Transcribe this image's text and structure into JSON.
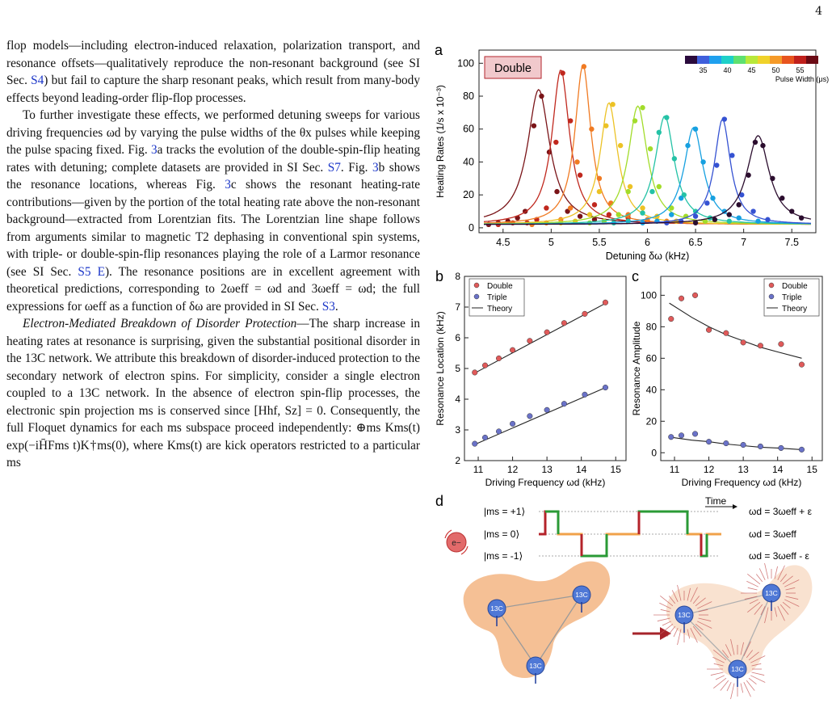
{
  "page_number": "4",
  "text": {
    "p1": [
      {
        "t": "flop models—including electron-induced relaxation, polarization transport, and resonance offsets—qualitatively reproduce the non-resonant background (see SI Sec. "
      },
      {
        "t": "S4",
        "link": true
      },
      {
        "t": ") but fail to capture the sharp resonant peaks, which result from many-body effects beyond leading-order flip-flop processes."
      }
    ],
    "p2": [
      {
        "t": "To further investigate these effects, we performed detuning sweeps for various driving frequencies ωd by varying the pulse widths of the θx pulses while keeping the pulse spacing fixed. Fig. "
      },
      {
        "t": "3",
        "link": true
      },
      {
        "t": "a tracks the evolution of the double-spin-flip heating rates with detuning; complete datasets are provided in SI Sec. "
      },
      {
        "t": "S7",
        "link": true
      },
      {
        "t": ". Fig. "
      },
      {
        "t": "3",
        "link": true
      },
      {
        "t": "b shows the resonance locations, whereas Fig. "
      },
      {
        "t": "3",
        "link": true
      },
      {
        "t": "c shows the resonant heating-rate contributions—given by the portion of the total heating rate above the non-resonant background—extracted from Lorentzian fits. The Lorentzian line shape follows from arguments similar to magnetic T2 dephasing in conventional spin systems, with triple- or double-spin-flip resonances playing the role of a Larmor resonance (see SI Sec. "
      },
      {
        "t": "S5 E",
        "link": true
      },
      {
        "t": "). The resonance positions are in excellent agreement with theoretical predictions, corresponding to 2ωeff = ωd and 3ωeff = ωd; the full expressions for ωeff as a function of δω are provided in SI Sec. "
      },
      {
        "t": "S3",
        "link": true
      },
      {
        "t": "."
      }
    ],
    "p3": [
      {
        "t": "Electron-Mediated Breakdown of Disorder Protection",
        "italic": true
      },
      {
        "t": "—The sharp increase in heating rates at resonance is surprising, given the substantial positional disorder in the 13C network. We attribute this breakdown of disorder-induced protection to the secondary network of electron spins. For simplicity, consider a single electron coupled to a 13C network. In the absence of electron spin-flip processes, the electronic spin projection ms is conserved since [Hhf, Sz] = 0. Consequently, the full Floquet dynamics for each ms subspace proceed independently: ⊕ms Kms(t) exp(−iH̄Fms t)K†ms(0), where Kms(t) are kick operators restricted to a particular ms"
      }
    ]
  },
  "figure": {
    "panel_a": {
      "label": "a"
    },
    "panel_b": {
      "label": "b"
    },
    "panel_c": {
      "label": "c"
    },
    "panel_d": {
      "label": "d",
      "time_label": "Time",
      "levels": [
        "|ms = +1⟩",
        "|ms = 0⟩",
        "|ms = -1⟩"
      ],
      "right_labels": [
        "ωd = 3ωeff + ε",
        "ωd = 3ωeff",
        "ωd = 3ωeff - ε"
      ],
      "electron_label": "e−",
      "nucleus_label": "13C"
    }
  },
  "chart_data": [
    {
      "type": "line",
      "panel": "a",
      "xlabel": "Detuning δω (kHz)",
      "ylabel": "Heating Rates (1/s x 10⁻³)",
      "xlim": [
        4.25,
        7.75
      ],
      "ylim": [
        -3,
        108
      ],
      "xticks": [
        4.5,
        5,
        5.5,
        6,
        6.5,
        7,
        7.5
      ],
      "yticks": [
        0,
        20,
        40,
        60,
        80,
        100
      ],
      "badge": "Double",
      "colorbar": {
        "title": "Pulse Width (μs)",
        "tick_labels": [
          "35",
          "40",
          "45",
          "50",
          "55"
        ],
        "colors": [
          "#2a0a3c",
          "#3f5fdc",
          "#1fa0ee",
          "#1ed0c8",
          "#5ee070",
          "#b8e83a",
          "#f0d22a",
          "#f59a28",
          "#e8541e",
          "#c0201c",
          "#6a0a14"
        ]
      },
      "series": [
        {
          "name": "",
          "color": "#7a1418",
          "center": 4.87,
          "peak": 84,
          "gamma": 0.14,
          "x": [
            4.35,
            4.45,
            4.55,
            4.65,
            4.73,
            4.82,
            4.9,
            4.98,
            5.06,
            5.17,
            5.3,
            5.45
          ],
          "y": [
            2,
            3,
            4,
            6,
            10,
            62,
            80,
            46,
            22,
            10,
            7,
            5
          ]
        },
        {
          "name": "",
          "color": "#c0281e",
          "center": 5.1,
          "peak": 96,
          "gamma": 0.11,
          "x": [
            4.45,
            4.6,
            4.75,
            4.85,
            4.95,
            5.05,
            5.12,
            5.2,
            5.3,
            5.45,
            5.6,
            5.8,
            6.0
          ],
          "y": [
            2,
            3,
            3,
            5,
            12,
            52,
            94,
            65,
            32,
            14,
            8,
            6,
            4
          ]
        },
        {
          "name": "",
          "color": "#f07a22",
          "center": 5.33,
          "peak": 99,
          "gamma": 0.1,
          "x": [
            4.8,
            4.95,
            5.1,
            5.2,
            5.27,
            5.34,
            5.42,
            5.5,
            5.62,
            5.8,
            6.0,
            6.2
          ],
          "y": [
            2,
            3,
            5,
            12,
            40,
            98,
            60,
            30,
            15,
            8,
            5,
            4
          ]
        },
        {
          "name": "",
          "color": "#ecc225",
          "center": 5.6,
          "peak": 76,
          "gamma": 0.11,
          "x": [
            5.1,
            5.25,
            5.4,
            5.5,
            5.57,
            5.64,
            5.72,
            5.82,
            5.95,
            6.1,
            6.3
          ],
          "y": [
            3,
            4,
            8,
            22,
            62,
            75,
            50,
            25,
            12,
            7,
            4
          ]
        },
        {
          "name": "",
          "color": "#a2dc2a",
          "center": 5.9,
          "peak": 74,
          "gamma": 0.12,
          "x": [
            5.4,
            5.55,
            5.7,
            5.8,
            5.87,
            5.95,
            6.03,
            6.12,
            6.25,
            6.4,
            6.6
          ],
          "y": [
            3,
            4,
            8,
            22,
            65,
            73,
            48,
            25,
            12,
            7,
            4
          ]
        },
        {
          "name": "",
          "color": "#24c2a6",
          "center": 6.18,
          "peak": 68,
          "gamma": 0.12,
          "x": [
            5.65,
            5.8,
            5.95,
            6.05,
            6.12,
            6.2,
            6.28,
            6.38,
            6.5,
            6.65,
            6.85
          ],
          "y": [
            3,
            4,
            9,
            22,
            58,
            67,
            42,
            20,
            10,
            6,
            4
          ]
        },
        {
          "name": "",
          "color": "#16a0e0",
          "center": 6.48,
          "peak": 61,
          "gamma": 0.12,
          "x": [
            5.95,
            6.1,
            6.25,
            6.35,
            6.42,
            6.5,
            6.58,
            6.68,
            6.8,
            6.95,
            7.15
          ],
          "y": [
            3,
            4,
            8,
            18,
            50,
            60,
            40,
            18,
            10,
            6,
            4
          ]
        },
        {
          "name": "",
          "color": "#3552d2",
          "center": 6.78,
          "peak": 66,
          "gamma": 0.1,
          "x": [
            6.2,
            6.35,
            6.5,
            6.62,
            6.72,
            6.8,
            6.88,
            6.98,
            7.1,
            7.25
          ],
          "y": [
            3,
            4,
            7,
            15,
            38,
            66,
            44,
            20,
            10,
            5
          ]
        },
        {
          "name": "",
          "color": "#2b0d2e",
          "center": 7.15,
          "peak": 56,
          "gamma": 0.14,
          "x": [
            6.5,
            6.7,
            6.85,
            6.95,
            7.05,
            7.12,
            7.2,
            7.3,
            7.4,
            7.5,
            7.6
          ],
          "y": [
            3,
            5,
            8,
            14,
            32,
            52,
            50,
            30,
            18,
            10,
            6
          ]
        }
      ]
    },
    {
      "type": "scatter",
      "panel": "b",
      "xlabel": "Driving Frequency ωd (kHz)",
      "ylabel": "Resonance Location (kHz)",
      "xlim": [
        10.6,
        15.3
      ],
      "ylim": [
        2,
        8
      ],
      "xticks": [
        11,
        12,
        13,
        14,
        15
      ],
      "yticks": [
        2,
        3,
        4,
        5,
        6,
        7,
        8
      ],
      "legend": {
        "placement": "top-left",
        "entries": [
          "Double",
          "Triple",
          "Theory"
        ]
      },
      "series": [
        {
          "name": "Double",
          "color": "#e05a5a",
          "x": [
            10.9,
            11.2,
            11.6,
            12.0,
            12.5,
            13.0,
            13.5,
            14.1,
            14.7
          ],
          "y": [
            4.87,
            5.1,
            5.33,
            5.6,
            5.9,
            6.18,
            6.48,
            6.78,
            7.15
          ]
        },
        {
          "name": "Triple",
          "color": "#6a72c8",
          "x": [
            10.9,
            11.2,
            11.6,
            12.0,
            12.5,
            13.0,
            13.5,
            14.1,
            14.7
          ],
          "y": [
            2.55,
            2.75,
            2.95,
            3.2,
            3.45,
            3.65,
            3.85,
            4.15,
            4.38
          ]
        }
      ],
      "theory": [
        {
          "name": "Theory",
          "x": [
            10.85,
            14.75
          ],
          "y": [
            4.82,
            7.15
          ]
        },
        {
          "name": "Theory",
          "x": [
            10.85,
            14.75
          ],
          "y": [
            2.5,
            4.4
          ]
        }
      ]
    },
    {
      "type": "scatter",
      "panel": "c",
      "xlabel": "Driving Frequency ωd (kHz)",
      "ylabel": "Resonance Amplitude",
      "xlim": [
        10.6,
        15.3
      ],
      "ylim": [
        -5,
        112
      ],
      "xticks": [
        11,
        12,
        13,
        14,
        15
      ],
      "yticks": [
        0,
        20,
        40,
        60,
        80,
        100
      ],
      "legend": {
        "placement": "top-right",
        "entries": [
          "Double",
          "Triple",
          "Theory"
        ]
      },
      "series": [
        {
          "name": "Double",
          "color": "#e05a5a",
          "x": [
            10.9,
            11.2,
            11.6,
            12.0,
            12.5,
            13.0,
            13.5,
            14.1,
            14.7
          ],
          "y": [
            85,
            98,
            100,
            78,
            76,
            70,
            68,
            69,
            56
          ]
        },
        {
          "name": "Triple",
          "color": "#6a72c8",
          "x": [
            10.9,
            11.2,
            11.6,
            12.0,
            12.5,
            13.0,
            13.5,
            14.1,
            14.7
          ],
          "y": [
            10,
            11,
            12,
            7,
            6,
            5,
            4,
            3,
            2
          ]
        }
      ],
      "theory": [
        {
          "name": "Theory",
          "x": [
            10.85,
            11.5,
            12.0,
            12.5,
            13.0,
            13.5,
            14.0,
            14.7
          ],
          "y": [
            95,
            86,
            80,
            75,
            71,
            67,
            64,
            60
          ]
        },
        {
          "name": "Theory",
          "x": [
            10.85,
            11.5,
            12.0,
            12.5,
            13.0,
            13.5,
            14.0,
            14.7
          ],
          "y": [
            10,
            8,
            7,
            5.5,
            4.5,
            3.5,
            3,
            2
          ]
        }
      ]
    }
  ]
}
